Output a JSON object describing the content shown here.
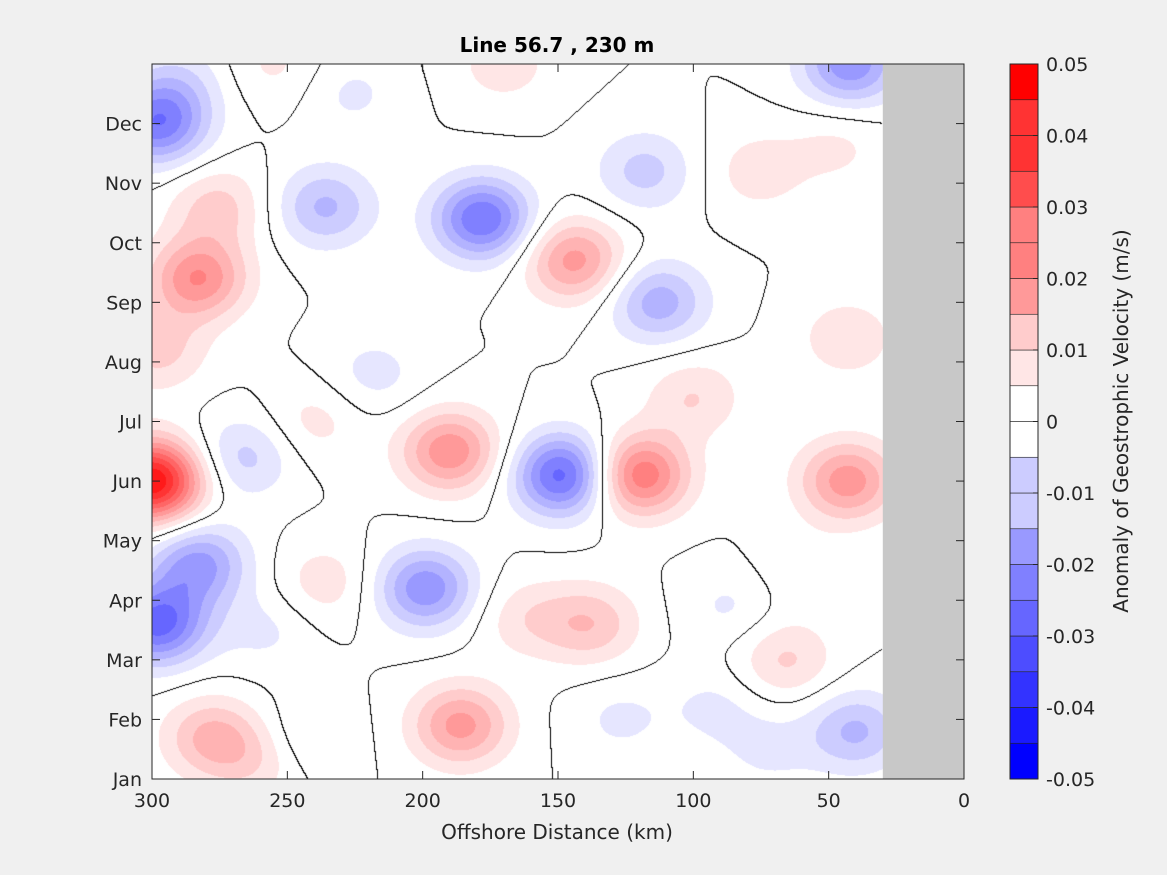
{
  "chart_data": {
    "type": "heatmap",
    "subtype": "filled-contour",
    "title": "Line 56.7 , 230 m",
    "xlabel": "Offshore Distance (km)",
    "ylabel": "",
    "xlim": [
      300,
      0
    ],
    "x_reversed": true,
    "x_ticks": [
      300,
      250,
      200,
      150,
      100,
      50,
      0
    ],
    "ylim": [
      0,
      12
    ],
    "y_ticks": [
      {
        "value": 0,
        "label": "Jan"
      },
      {
        "value": 1,
        "label": "Feb"
      },
      {
        "value": 2,
        "label": "Mar"
      },
      {
        "value": 3,
        "label": "Apr"
      },
      {
        "value": 4,
        "label": "May"
      },
      {
        "value": 5,
        "label": "Jun"
      },
      {
        "value": 6,
        "label": "Jul"
      },
      {
        "value": 7,
        "label": "Aug"
      },
      {
        "value": 8,
        "label": "Sep"
      },
      {
        "value": 9,
        "label": "Oct"
      },
      {
        "value": 10,
        "label": "Nov"
      },
      {
        "value": 11,
        "label": "Dec"
      }
    ],
    "no_data_x_range": [
      30,
      0
    ],
    "no_data_color": "#c8c8c8",
    "zero_contour_color": "#000000",
    "colorbar": {
      "label": "Anomaly of Geostrophic Velocity (m/s)",
      "min": -0.05,
      "max": 0.05,
      "step": 0.005,
      "ticks": [
        {
          "value": 0.05,
          "label": "0.05"
        },
        {
          "value": 0.04,
          "label": "0.04"
        },
        {
          "value": 0.03,
          "label": "0.03"
        },
        {
          "value": 0.02,
          "label": "0.02"
        },
        {
          "value": 0.01,
          "label": "0.01"
        },
        {
          "value": 0.0,
          "label": "0"
        },
        {
          "value": -0.01,
          "label": "-0.01"
        },
        {
          "value": -0.02,
          "label": "-0.02"
        },
        {
          "value": -0.03,
          "label": "-0.03"
        },
        {
          "value": -0.04,
          "label": "-0.04"
        },
        {
          "value": -0.05,
          "label": "-0.05"
        }
      ],
      "positive_color": "#ff0000",
      "negative_color": "#0000ff",
      "zero_color": "#ffffff"
    },
    "features": [
      {
        "x": 300,
        "y": 5.0,
        "value": 0.05
      },
      {
        "x": 298,
        "y": 7.2,
        "value": 0.012
      },
      {
        "x": 283,
        "y": 8.4,
        "value": 0.025
      },
      {
        "x": 276,
        "y": 9.6,
        "value": 0.012
      },
      {
        "x": 298,
        "y": 11.0,
        "value": -0.028
      },
      {
        "x": 290,
        "y": 11.7,
        "value": -0.008
      },
      {
        "x": 298,
        "y": 2.6,
        "value": -0.032
      },
      {
        "x": 283,
        "y": 3.6,
        "value": -0.022
      },
      {
        "x": 266,
        "y": 5.4,
        "value": -0.012
      },
      {
        "x": 278,
        "y": 0.7,
        "value": 0.016
      },
      {
        "x": 262,
        "y": 0.3,
        "value": 0.008
      },
      {
        "x": 258,
        "y": 2.5,
        "value": -0.006
      },
      {
        "x": 243,
        "y": 0.7,
        "value": -0.006
      },
      {
        "x": 236,
        "y": 9.6,
        "value": -0.016
      },
      {
        "x": 240,
        "y": 6.0,
        "value": 0.007
      },
      {
        "x": 236,
        "y": 3.3,
        "value": 0.008
      },
      {
        "x": 255,
        "y": 12.0,
        "value": 0.006
      },
      {
        "x": 226,
        "y": 11.5,
        "value": -0.006
      },
      {
        "x": 218,
        "y": 6.8,
        "value": -0.007
      },
      {
        "x": 178,
        "y": 9.4,
        "value": -0.03
      },
      {
        "x": 190,
        "y": 5.5,
        "value": 0.024
      },
      {
        "x": 199,
        "y": 3.2,
        "value": -0.024
      },
      {
        "x": 186,
        "y": 0.9,
        "value": 0.022
      },
      {
        "x": 170,
        "y": 12.0,
        "value": 0.008
      },
      {
        "x": 148,
        "y": 5.1,
        "value": -0.033
      },
      {
        "x": 162,
        "y": 2.7,
        "value": 0.008
      },
      {
        "x": 144,
        "y": 8.7,
        "value": 0.022
      },
      {
        "x": 138,
        "y": 2.6,
        "value": 0.014
      },
      {
        "x": 120,
        "y": 5.1,
        "value": 0.03
      },
      {
        "x": 100,
        "y": 6.4,
        "value": 0.01
      },
      {
        "x": 118,
        "y": 10.2,
        "value": -0.012
      },
      {
        "x": 113,
        "y": 8.0,
        "value": -0.018
      },
      {
        "x": 127,
        "y": 1.0,
        "value": -0.006
      },
      {
        "x": 92,
        "y": 1.2,
        "value": -0.006
      },
      {
        "x": 76,
        "y": 10.2,
        "value": 0.008
      },
      {
        "x": 47,
        "y": 10.6,
        "value": 0.006
      },
      {
        "x": 42,
        "y": 12.0,
        "value": -0.024
      },
      {
        "x": 43,
        "y": 5.0,
        "value": 0.023
      },
      {
        "x": 43,
        "y": 7.4,
        "value": 0.009
      },
      {
        "x": 66,
        "y": 2.0,
        "value": 0.011
      },
      {
        "x": 40,
        "y": 0.8,
        "value": -0.016
      },
      {
        "x": 72,
        "y": 0.5,
        "value": -0.006
      },
      {
        "x": 86,
        "y": 2.9,
        "value": -0.006
      },
      {
        "x": 62,
        "y": 3.5,
        "value": 0.004
      }
    ]
  }
}
